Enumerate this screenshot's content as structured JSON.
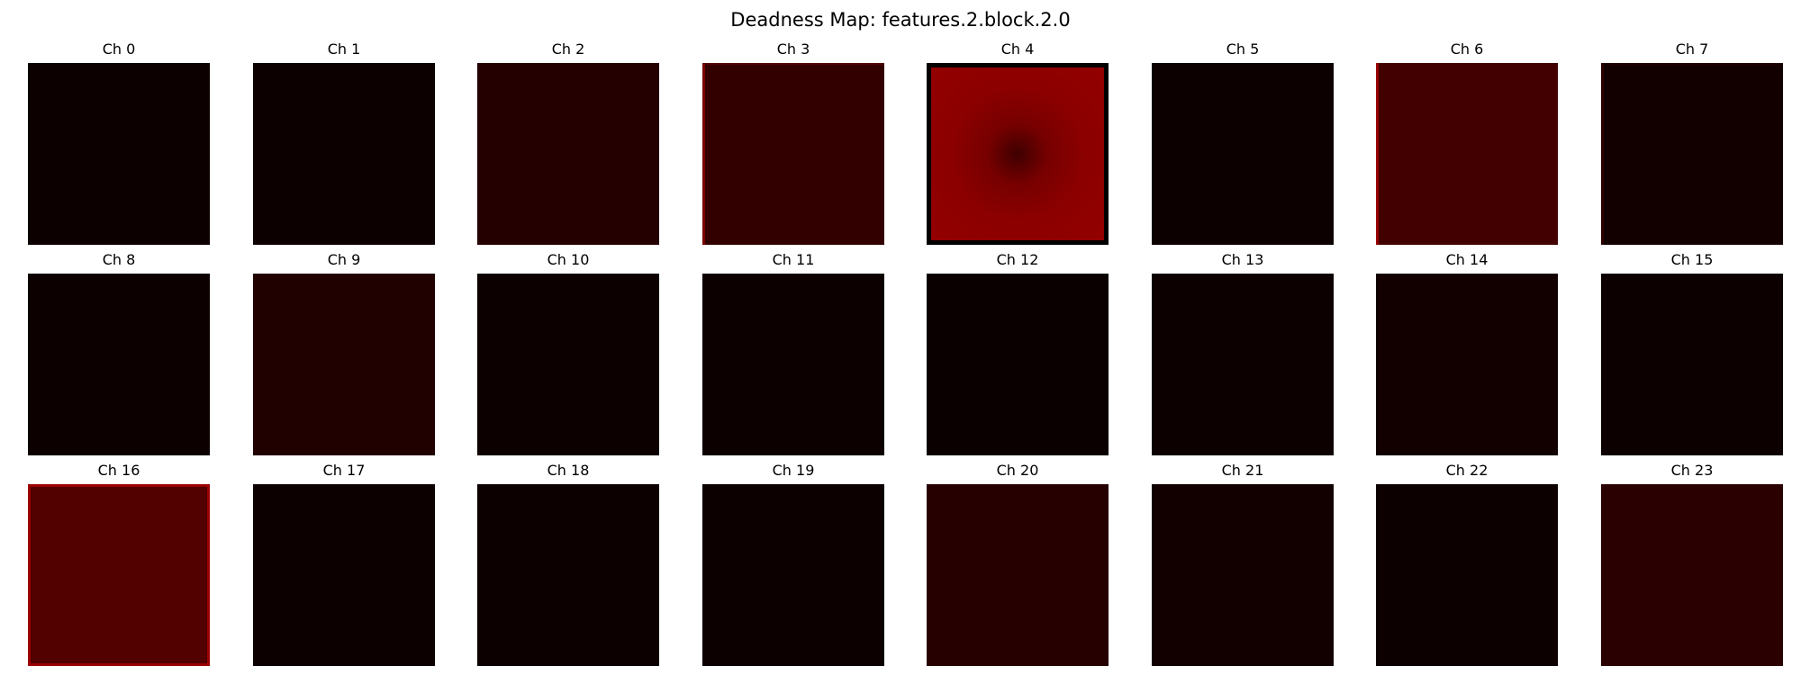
{
  "figure": {
    "title": "Deadness Map: features.2.block.2.0"
  },
  "channels": [
    {
      "label": "Ch 0",
      "level": 0.05,
      "edge": "none"
    },
    {
      "label": "Ch 1",
      "level": 0.05,
      "edge": "none"
    },
    {
      "label": "Ch 2",
      "level": 0.14,
      "edge": "none"
    },
    {
      "label": "Ch 3",
      "level": 0.2,
      "edge": "left-top"
    },
    {
      "label": "Ch 4",
      "level": 0.55,
      "edge": "dark-border"
    },
    {
      "label": "Ch 5",
      "level": 0.05,
      "edge": "none"
    },
    {
      "label": "Ch 6",
      "level": 0.26,
      "edge": "left"
    },
    {
      "label": "Ch 7",
      "level": 0.07,
      "edge": "left-top"
    },
    {
      "label": "Ch 8",
      "level": 0.05,
      "edge": "none"
    },
    {
      "label": "Ch 9",
      "level": 0.13,
      "edge": "none"
    },
    {
      "label": "Ch 10",
      "level": 0.05,
      "edge": "none"
    },
    {
      "label": "Ch 11",
      "level": 0.05,
      "edge": "none"
    },
    {
      "label": "Ch 12",
      "level": 0.04,
      "edge": "none"
    },
    {
      "label": "Ch 13",
      "level": 0.05,
      "edge": "none"
    },
    {
      "label": "Ch 14",
      "level": 0.07,
      "edge": "none"
    },
    {
      "label": "Ch 15",
      "level": 0.05,
      "edge": "none"
    },
    {
      "label": "Ch 16",
      "level": 0.32,
      "edge": "full"
    },
    {
      "label": "Ch 17",
      "level": 0.05,
      "edge": "none"
    },
    {
      "label": "Ch 18",
      "level": 0.05,
      "edge": "none"
    },
    {
      "label": "Ch 19",
      "level": 0.05,
      "edge": "none"
    },
    {
      "label": "Ch 20",
      "level": 0.15,
      "edge": "none"
    },
    {
      "label": "Ch 21",
      "level": 0.07,
      "edge": "none"
    },
    {
      "label": "Ch 22",
      "level": 0.05,
      "edge": "none"
    },
    {
      "label": "Ch 23",
      "level": 0.17,
      "edge": "none"
    }
  ],
  "colors": {
    "background": "#ffffff",
    "colormap_low": "#000000",
    "colormap_high": "#ff0000"
  }
}
